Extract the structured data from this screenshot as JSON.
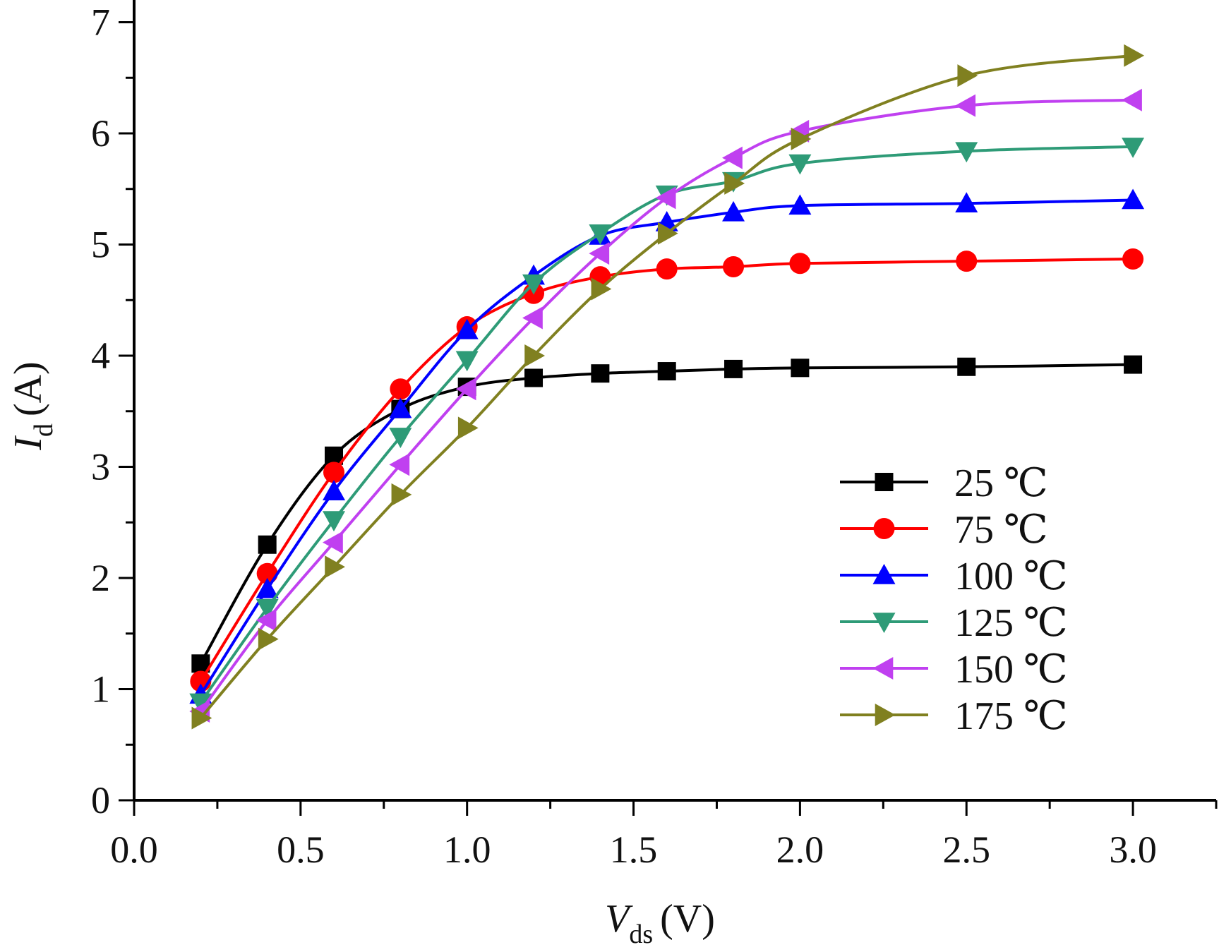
{
  "chart_data": {
    "type": "line",
    "title": "",
    "xlabel": {
      "symbol": "V",
      "subscript": "ds",
      "unit": "(V)"
    },
    "ylabel": {
      "symbol": "I",
      "subscript": "d",
      "unit": "(A)"
    },
    "xlim": [
      0.0,
      3.25
    ],
    "ylim": [
      0,
      7.2
    ],
    "x_ticks": [
      "0.0",
      "0.5",
      "1.0",
      "1.5",
      "2.0",
      "2.5",
      "3.0"
    ],
    "y_ticks": [
      "0",
      "1",
      "2",
      "3",
      "4",
      "5",
      "6",
      "7"
    ],
    "grid": false,
    "legend_position": "lower-right",
    "x": [
      0.2,
      0.4,
      0.6,
      0.8,
      1.0,
      1.2,
      1.4,
      1.6,
      1.8,
      2.0,
      2.5,
      3.0
    ],
    "series": [
      {
        "name": "25 ℃",
        "color": "#000000",
        "marker": "square",
        "values": [
          1.23,
          2.3,
          3.1,
          3.52,
          3.72,
          3.8,
          3.84,
          3.86,
          3.88,
          3.89,
          3.9,
          3.92
        ]
      },
      {
        "name": "75 ℃",
        "color": "#ff0000",
        "marker": "circle",
        "values": [
          1.07,
          2.04,
          2.95,
          3.7,
          4.26,
          4.56,
          4.71,
          4.78,
          4.8,
          4.83,
          4.85,
          4.87
        ]
      },
      {
        "name": "100 ℃",
        "color": "#0000ff",
        "marker": "triangle-up",
        "values": [
          0.95,
          1.9,
          2.78,
          3.52,
          4.23,
          4.72,
          5.08,
          5.2,
          5.29,
          5.35,
          5.37,
          5.4
        ]
      },
      {
        "name": "125 ℃",
        "color": "#2e9b77",
        "marker": "triangle-down",
        "values": [
          0.88,
          1.73,
          2.52,
          3.27,
          3.96,
          4.65,
          5.1,
          5.45,
          5.57,
          5.73,
          5.84,
          5.88
        ]
      },
      {
        "name": "150 ℃",
        "color": "#c040f0",
        "marker": "triangle-left",
        "values": [
          0.8,
          1.62,
          2.32,
          3.02,
          3.7,
          4.34,
          4.92,
          5.42,
          5.78,
          6.02,
          6.25,
          6.3
        ]
      },
      {
        "name": "175 ℃",
        "color": "#808020",
        "marker": "triangle-right",
        "values": [
          0.74,
          1.45,
          2.1,
          2.75,
          3.35,
          4.0,
          4.6,
          5.1,
          5.55,
          5.95,
          6.52,
          6.7
        ]
      }
    ]
  }
}
